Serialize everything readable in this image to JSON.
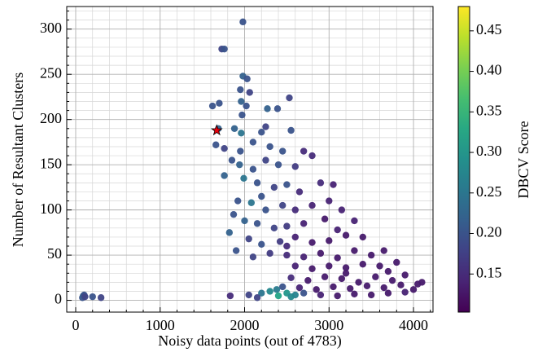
{
  "chart_data": {
    "type": "scatter",
    "xlabel": "Noisy data points (out of 4783)",
    "ylabel": "Number of Resultant Clusters",
    "colorbar_label": "DBCV Score",
    "xlim": [
      -106,
      4231
    ],
    "ylim": [
      -13,
      325
    ],
    "xticks": [
      0,
      1000,
      2000,
      3000,
      4000
    ],
    "yticks": [
      0,
      50,
      100,
      150,
      200,
      250,
      300
    ],
    "xticks_minor": [
      200,
      400,
      600,
      800,
      1200,
      1400,
      1600,
      1800,
      2200,
      2400,
      2600,
      2800,
      3200,
      3400,
      3600,
      3800,
      4200
    ],
    "yticks_minor": [
      10,
      20,
      30,
      40,
      60,
      70,
      80,
      90,
      110,
      120,
      130,
      140,
      160,
      170,
      180,
      190,
      210,
      220,
      230,
      240,
      260,
      270,
      280,
      290,
      310,
      320
    ],
    "grid": true,
    "clim": [
      0.103,
      0.48
    ],
    "cticks": [
      0.15,
      0.2,
      0.25,
      0.3,
      0.35,
      0.4,
      0.45
    ],
    "cticks_labels": [
      "0.15",
      "0.20",
      "0.25",
      "0.30",
      "0.35",
      "0.40",
      "0.45"
    ],
    "colormap": "viridis",
    "x": [
      80,
      90,
      100,
      110,
      200,
      300,
      1980,
      1730,
      1760,
      1980,
      2030,
      1950,
      2060,
      1700,
      1620,
      2020,
      1960,
      2530,
      2390,
      2270,
      1970,
      1690,
      1880,
      2250,
      2550,
      1960,
      2200,
      1660,
      1760,
      2300,
      2450,
      2700,
      1850,
      1940,
      2100,
      2250,
      2400,
      2600,
      2800,
      1760,
      1990,
      2150,
      2350,
      2500,
      2650,
      2900,
      3050,
      1920,
      2080,
      2250,
      2450,
      2600,
      2800,
      3000,
      3150,
      1870,
      2000,
      2150,
      2350,
      2500,
      2700,
      2950,
      3100,
      3300,
      1820,
      2050,
      2200,
      2420,
      2600,
      2800,
      3000,
      3200,
      3400,
      1900,
      2100,
      2300,
      2500,
      2700,
      2900,
      3100,
      3300,
      3500,
      3650,
      2600,
      2800,
      3000,
      3200,
      3400,
      3600,
      3800,
      2550,
      2750,
      2950,
      3150,
      3350,
      3550,
      3750,
      3900,
      2450,
      2650,
      2850,
      3050,
      3250,
      3450,
      3650,
      3850,
      4050,
      4100,
      1830,
      2050,
      2200,
      2300,
      2380,
      2500,
      2600,
      2700,
      2900,
      3100,
      3300,
      3500,
      3700,
      3900,
      4000,
      2400,
      2550,
      2150,
      3200,
      3700,
      2500,
      2200,
      1950,
      2100
    ],
    "values": [
      3,
      5,
      6,
      4,
      4,
      3,
      308,
      278,
      278,
      248,
      245,
      233,
      230,
      218,
      215,
      215,
      220,
      224,
      212,
      212,
      205,
      190,
      190,
      192,
      188,
      185,
      186,
      172,
      168,
      170,
      165,
      165,
      155,
      150,
      145,
      155,
      150,
      148,
      160,
      138,
      135,
      130,
      125,
      128,
      120,
      130,
      128,
      110,
      108,
      100,
      105,
      100,
      105,
      110,
      100,
      95,
      88,
      85,
      80,
      82,
      85,
      90,
      78,
      88,
      75,
      68,
      62,
      65,
      70,
      64,
      66,
      72,
      70,
      55,
      48,
      52,
      50,
      48,
      52,
      47,
      55,
      50,
      55,
      38,
      35,
      38,
      36,
      40,
      38,
      42,
      25,
      22,
      26,
      24,
      20,
      26,
      22,
      28,
      15,
      14,
      12,
      15,
      13,
      16,
      14,
      17,
      18,
      20,
      5,
      6,
      8,
      10,
      12,
      8,
      6,
      8,
      6,
      5,
      7,
      6,
      8,
      9,
      12,
      5,
      4,
      3,
      30,
      32,
      60,
      115,
      165,
      175
    ],
    "color_values": [
      0.2,
      0.22,
      0.2,
      0.18,
      0.2,
      0.18,
      0.2,
      0.18,
      0.2,
      0.22,
      0.2,
      0.2,
      0.18,
      0.2,
      0.2,
      0.2,
      0.22,
      0.18,
      0.2,
      0.22,
      0.2,
      0.22,
      0.22,
      0.18,
      0.2,
      0.25,
      0.2,
      0.2,
      0.18,
      0.2,
      0.2,
      0.15,
      0.2,
      0.22,
      0.2,
      0.18,
      0.2,
      0.17,
      0.15,
      0.22,
      0.25,
      0.2,
      0.18,
      0.2,
      0.15,
      0.15,
      0.14,
      0.2,
      0.25,
      0.2,
      0.18,
      0.15,
      0.14,
      0.14,
      0.14,
      0.2,
      0.22,
      0.2,
      0.18,
      0.17,
      0.14,
      0.13,
      0.14,
      0.14,
      0.22,
      0.18,
      0.2,
      0.17,
      0.14,
      0.13,
      0.13,
      0.13,
      0.13,
      0.2,
      0.18,
      0.17,
      0.15,
      0.14,
      0.13,
      0.13,
      0.13,
      0.13,
      0.13,
      0.14,
      0.13,
      0.13,
      0.13,
      0.13,
      0.13,
      0.13,
      0.15,
      0.13,
      0.13,
      0.13,
      0.13,
      0.13,
      0.13,
      0.13,
      0.2,
      0.14,
      0.13,
      0.13,
      0.13,
      0.13,
      0.13,
      0.13,
      0.13,
      0.13,
      0.15,
      0.18,
      0.25,
      0.28,
      0.26,
      0.3,
      0.27,
      0.2,
      0.14,
      0.13,
      0.13,
      0.13,
      0.13,
      0.14,
      0.13,
      0.32,
      0.28,
      0.18,
      0.13,
      0.13,
      0.15,
      0.2,
      0.2,
      0.2
    ],
    "highlight": {
      "x": 1670,
      "y": 188,
      "color": "#e8000b"
    }
  }
}
